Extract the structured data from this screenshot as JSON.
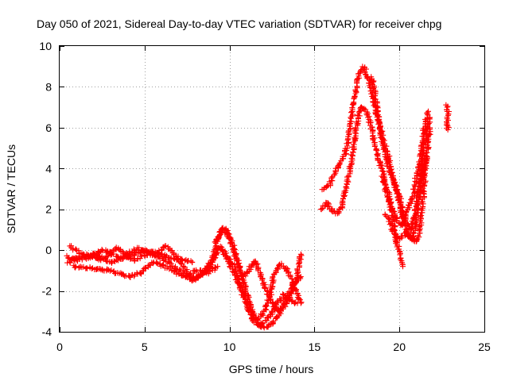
{
  "chart_data": {
    "type": "scatter",
    "title": "Day 050 of 2021, Sidereal Day-to-day VTEC variation (SDTVAR) for receiver chpg",
    "xlabel": "GPS time / hours",
    "ylabel": "SDTVAR / TECUs",
    "xlim": [
      0,
      25
    ],
    "ylim": [
      -4,
      10
    ],
    "xticks": [
      0,
      5,
      10,
      15,
      20,
      25
    ],
    "yticks": [
      -4,
      -2,
      0,
      2,
      4,
      6,
      8,
      10
    ],
    "xtick_labels": [
      "0",
      "5",
      "10",
      "15",
      "20",
      "25"
    ],
    "ytick_labels": [
      "-4",
      "-2",
      "0",
      "2",
      "4",
      "6",
      "8",
      "10"
    ],
    "grid": true,
    "marker": "+",
    "color": "#ff0000",
    "series": [
      {
        "name": "SDTVAR",
        "tracks": [
          [
            [
              0.4,
              -0.3
            ],
            [
              1.0,
              -0.5
            ],
            [
              2.0,
              -0.2
            ],
            [
              3.0,
              -0.6
            ],
            [
              4.0,
              -0.3
            ],
            [
              5.0,
              0.0
            ],
            [
              6.0,
              -0.2
            ],
            [
              7.0,
              -0.5
            ],
            [
              7.6,
              -1.2
            ],
            [
              8.0,
              -1.4
            ],
            [
              8.6,
              -1.0
            ],
            [
              9.0,
              -0.4
            ],
            [
              9.4,
              0.9
            ],
            [
              9.8,
              1.0
            ],
            [
              10.2,
              0.3
            ],
            [
              10.6,
              -0.9
            ],
            [
              11.0,
              -2.1
            ],
            [
              11.4,
              -3.2
            ],
            [
              11.8,
              -3.7
            ],
            [
              12.2,
              -3.8
            ],
            [
              12.6,
              -3.5
            ],
            [
              13.0,
              -3.0
            ],
            [
              13.4,
              -2.2
            ],
            [
              13.8,
              -1.6
            ],
            [
              14.2,
              -1.3
            ]
          ],
          [
            [
              0.5,
              -0.6
            ],
            [
              1.4,
              -0.2
            ],
            [
              2.4,
              -0.5
            ],
            [
              3.4,
              0.1
            ],
            [
              4.4,
              -0.5
            ],
            [
              5.4,
              -0.1
            ],
            [
              6.4,
              -0.6
            ],
            [
              7.2,
              -1.1
            ],
            [
              7.8,
              -1.5
            ],
            [
              8.4,
              -1.2
            ],
            [
              9.0,
              -0.6
            ],
            [
              9.4,
              0.2
            ],
            [
              9.8,
              -0.3
            ],
            [
              10.2,
              -1.0
            ],
            [
              10.6,
              -1.8
            ],
            [
              11.0,
              -2.6
            ],
            [
              11.4,
              -3.5
            ],
            [
              11.8,
              -3.7
            ],
            [
              12.4,
              -3.2
            ],
            [
              12.8,
              -2.6
            ],
            [
              13.2,
              -2.2
            ],
            [
              13.6,
              -2.5
            ],
            [
              14.0,
              -2.6
            ]
          ],
          [
            [
              0.6,
              0.2
            ],
            [
              1.6,
              -0.4
            ],
            [
              2.6,
              0.0
            ],
            [
              3.6,
              -0.4
            ],
            [
              4.6,
              0.1
            ],
            [
              5.6,
              -0.3
            ],
            [
              6.2,
              0.2
            ],
            [
              7.0,
              -0.4
            ],
            [
              7.8,
              -0.6
            ]
          ],
          [
            [
              0.8,
              -0.8
            ],
            [
              2.0,
              -0.9
            ],
            [
              3.0,
              -1.0
            ],
            [
              3.6,
              -1.2
            ],
            [
              4.2,
              -1.3
            ],
            [
              4.8,
              -1.1
            ],
            [
              5.5,
              -0.6
            ],
            [
              6.5,
              -0.9
            ],
            [
              7.3,
              -1.3
            ],
            [
              8.0,
              -1.0
            ],
            [
              8.8,
              -1.1
            ],
            [
              9.3,
              -0.8
            ]
          ],
          [
            [
              9.2,
              0.4
            ],
            [
              9.6,
              1.1
            ],
            [
              10.0,
              0.6
            ],
            [
              10.4,
              -0.4
            ],
            [
              10.8,
              -1.3
            ],
            [
              11.1,
              -1.0
            ],
            [
              11.5,
              -0.5
            ],
            [
              12.0,
              -1.6
            ],
            [
              12.4,
              -2.4
            ],
            [
              12.8,
              -3.0
            ],
            [
              13.2,
              -2.8
            ],
            [
              13.6,
              -2.2
            ],
            [
              14.0,
              -1.2
            ],
            [
              14.2,
              -0.2
            ]
          ],
          [
            [
              9.6,
              0.0
            ],
            [
              10.2,
              -0.7
            ],
            [
              10.8,
              -2.0
            ],
            [
              11.2,
              -2.9
            ],
            [
              11.6,
              -3.4
            ],
            [
              12.0,
              -3.1
            ],
            [
              12.4,
              -2.2
            ],
            [
              12.6,
              -1.2
            ],
            [
              13.0,
              -0.7
            ],
            [
              13.4,
              -1.0
            ],
            [
              13.8,
              -1.8
            ],
            [
              14.2,
              -2.6
            ]
          ],
          [
            [
              15.4,
              2.0
            ],
            [
              15.7,
              2.3
            ],
            [
              16.0,
              2.0
            ],
            [
              16.3,
              1.8
            ],
            [
              16.6,
              2.1
            ],
            [
              16.9,
              3.2
            ],
            [
              17.2,
              4.6
            ],
            [
              17.5,
              6.2
            ],
            [
              17.7,
              7.0
            ],
            [
              18.0,
              6.9
            ],
            [
              18.3,
              6.2
            ],
            [
              18.6,
              5.0
            ],
            [
              19.0,
              3.8
            ],
            [
              19.4,
              2.6
            ],
            [
              19.8,
              0.5
            ],
            [
              20.2,
              -0.8
            ]
          ],
          [
            [
              15.5,
              3.0
            ],
            [
              15.9,
              3.2
            ],
            [
              16.2,
              3.8
            ],
            [
              16.5,
              4.2
            ],
            [
              16.8,
              4.7
            ],
            [
              17.0,
              5.5
            ],
            [
              17.3,
              7.3
            ],
            [
              17.6,
              8.6
            ],
            [
              17.9,
              9.0
            ],
            [
              18.2,
              8.4
            ],
            [
              18.5,
              7.2
            ],
            [
              18.8,
              6.2
            ],
            [
              19.1,
              5.3
            ],
            [
              19.4,
              4.5
            ],
            [
              19.7,
              3.2
            ],
            [
              20.0,
              2.6
            ],
            [
              20.3,
              1.5
            ],
            [
              20.7,
              1.0
            ],
            [
              21.0,
              2.2
            ],
            [
              21.3,
              4.0
            ],
            [
              21.6,
              5.8
            ],
            [
              21.8,
              6.5
            ]
          ],
          [
            [
              18.4,
              8.5
            ],
            [
              18.7,
              6.8
            ],
            [
              19.0,
              5.2
            ],
            [
              19.3,
              4.2
            ],
            [
              19.6,
              3.6
            ],
            [
              19.9,
              2.8
            ],
            [
              20.2,
              1.6
            ],
            [
              20.5,
              0.7
            ],
            [
              20.8,
              0.5
            ],
            [
              21.0,
              1.5
            ],
            [
              21.3,
              3.2
            ],
            [
              21.6,
              4.6
            ]
          ],
          [
            [
              19.0,
              3.6
            ],
            [
              19.3,
              2.6
            ],
            [
              19.6,
              2.0
            ],
            [
              19.9,
              1.4
            ],
            [
              20.2,
              1.2
            ],
            [
              20.5,
              2.0
            ],
            [
              20.8,
              2.6
            ],
            [
              21.0,
              3.6
            ],
            [
              21.2,
              4.2
            ],
            [
              21.5,
              6.2
            ],
            [
              21.7,
              6.8
            ]
          ],
          [
            [
              19.2,
              1.8
            ],
            [
              19.5,
              1.2
            ],
            [
              19.8,
              0.6
            ],
            [
              20.1,
              0.6
            ],
            [
              20.4,
              0.9
            ],
            [
              20.7,
              0.6
            ],
            [
              21.0,
              0.4
            ],
            [
              21.2,
              0.9
            ],
            [
              21.4,
              2.6
            ],
            [
              21.6,
              4.6
            ],
            [
              21.8,
              6.0
            ]
          ],
          [
            [
              22.8,
              7.1
            ],
            [
              22.85,
              6.8
            ],
            [
              22.8,
              6.2
            ],
            [
              22.85,
              5.9
            ]
          ]
        ]
      }
    ]
  }
}
